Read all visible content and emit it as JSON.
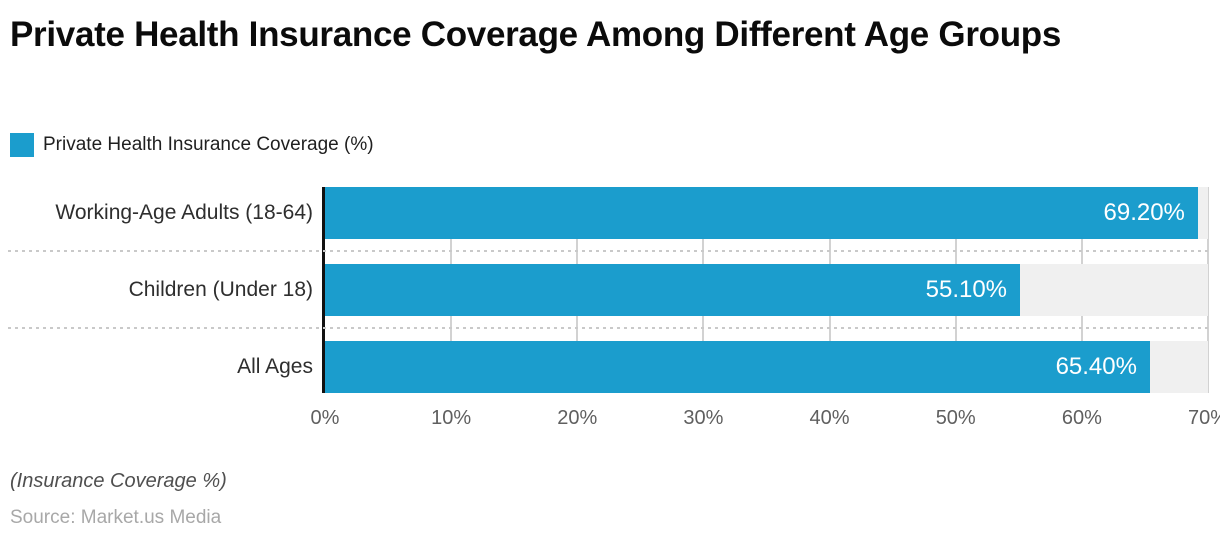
{
  "page": {
    "title": "Private Health Insurance Coverage Among Different Age Groups"
  },
  "legend": {
    "label": "Private Health Insurance Coverage (%)"
  },
  "footer": {
    "note": "(Insurance Coverage %)",
    "source": "Source: Market.us Media"
  },
  "colors": {
    "bar": "#1b9dcd",
    "track": "#f0f0f0",
    "gridline": "#d2d2d2",
    "separator": "#c9c9c9",
    "axis_line": "#111111",
    "value_label": "#ffffff",
    "category_label": "#2e2e2e",
    "tick_label": "#5f5f5f",
    "title": "#0b0b0b",
    "note": "#4f4f4f",
    "source": "#a8a8a8"
  },
  "chart_data": {
    "type": "bar",
    "orientation": "horizontal",
    "title": "Private Health Insurance Coverage Among Different Age Groups",
    "categories": [
      "Working-Age Adults (18-64)",
      "Children (Under 18)",
      "All Ages"
    ],
    "series": [
      {
        "name": "Private Health Insurance Coverage (%)",
        "values": [
          69.2,
          55.1,
          65.4
        ],
        "value_labels": [
          "69.20%",
          "55.10%",
          "65.40%"
        ]
      }
    ],
    "xlim": [
      0,
      70
    ],
    "x_ticks": [
      "0%",
      "10%",
      "20%",
      "30%",
      "40%",
      "50%",
      "60%",
      "70%"
    ],
    "xlabel": "(Insurance Coverage %)",
    "grid": true,
    "grid_style": "vertical-solid-plus-dotted-row-separators",
    "legend_position": "top-left",
    "value_label_position": "inside-end",
    "source": "Source: Market.us Media"
  }
}
